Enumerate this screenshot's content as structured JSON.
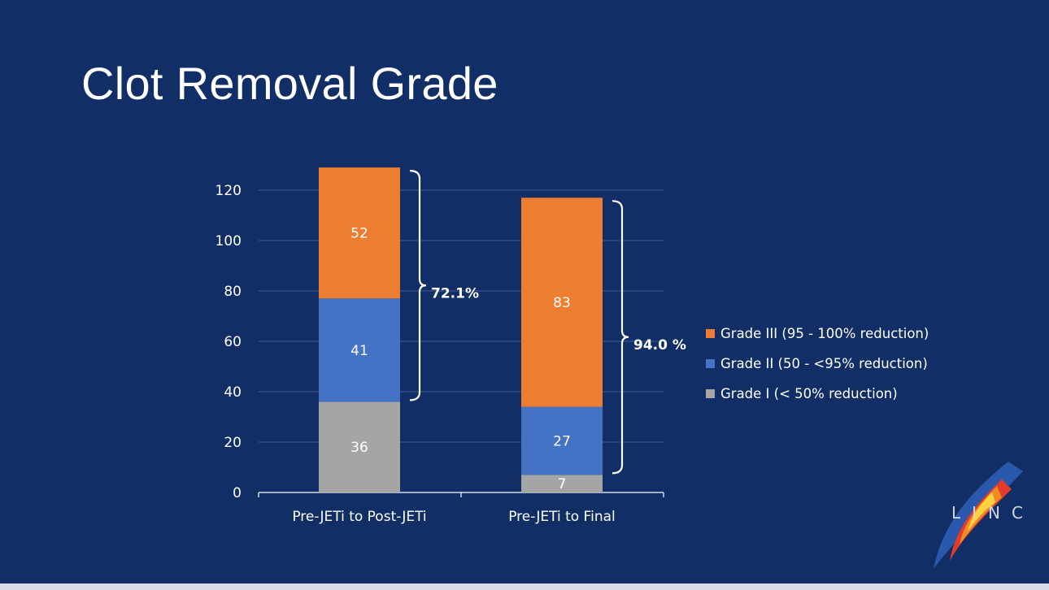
{
  "title": "Clot Removal Grade",
  "chart_data": {
    "type": "bar",
    "stacked": true,
    "categories": [
      "Pre-JETi to Post-JETi",
      "Pre-JETi to Final"
    ],
    "series": [
      {
        "name": "Grade I (< 50% reduction)",
        "color": "#a5a5a5",
        "values": [
          36,
          7
        ]
      },
      {
        "name": "Grade II (50 - <95% reduction)",
        "color": "#4472c4",
        "values": [
          41,
          27
        ]
      },
      {
        "name": "Grade III (95 - 100% reduction)",
        "color": "#ed7d31",
        "values": [
          52,
          83
        ]
      }
    ],
    "ylim": [
      0,
      120
    ],
    "yticks": [
      0,
      20,
      40,
      60,
      80,
      100,
      120
    ],
    "grid": true,
    "legend_placement": "right",
    "annotations": [
      {
        "category": "Pre-JETi to Post-JETi",
        "text": "72.1%",
        "covers": "Grade II + Grade III"
      },
      {
        "category": "Pre-JETi to Final",
        "text": "94.0 %",
        "covers": "Grade II + Grade III"
      }
    ]
  },
  "legend": [
    {
      "label": "Grade III (95 - 100% reduction)",
      "color": "#ed7d31"
    },
    {
      "label": "Grade II (50 - <95% reduction)",
      "color": "#4472c4"
    },
    {
      "label": "Grade I (< 50% reduction)",
      "color": "#a5a5a5"
    }
  ],
  "logo": {
    "text": "LINC",
    "icon": "linc-flame-logo"
  }
}
